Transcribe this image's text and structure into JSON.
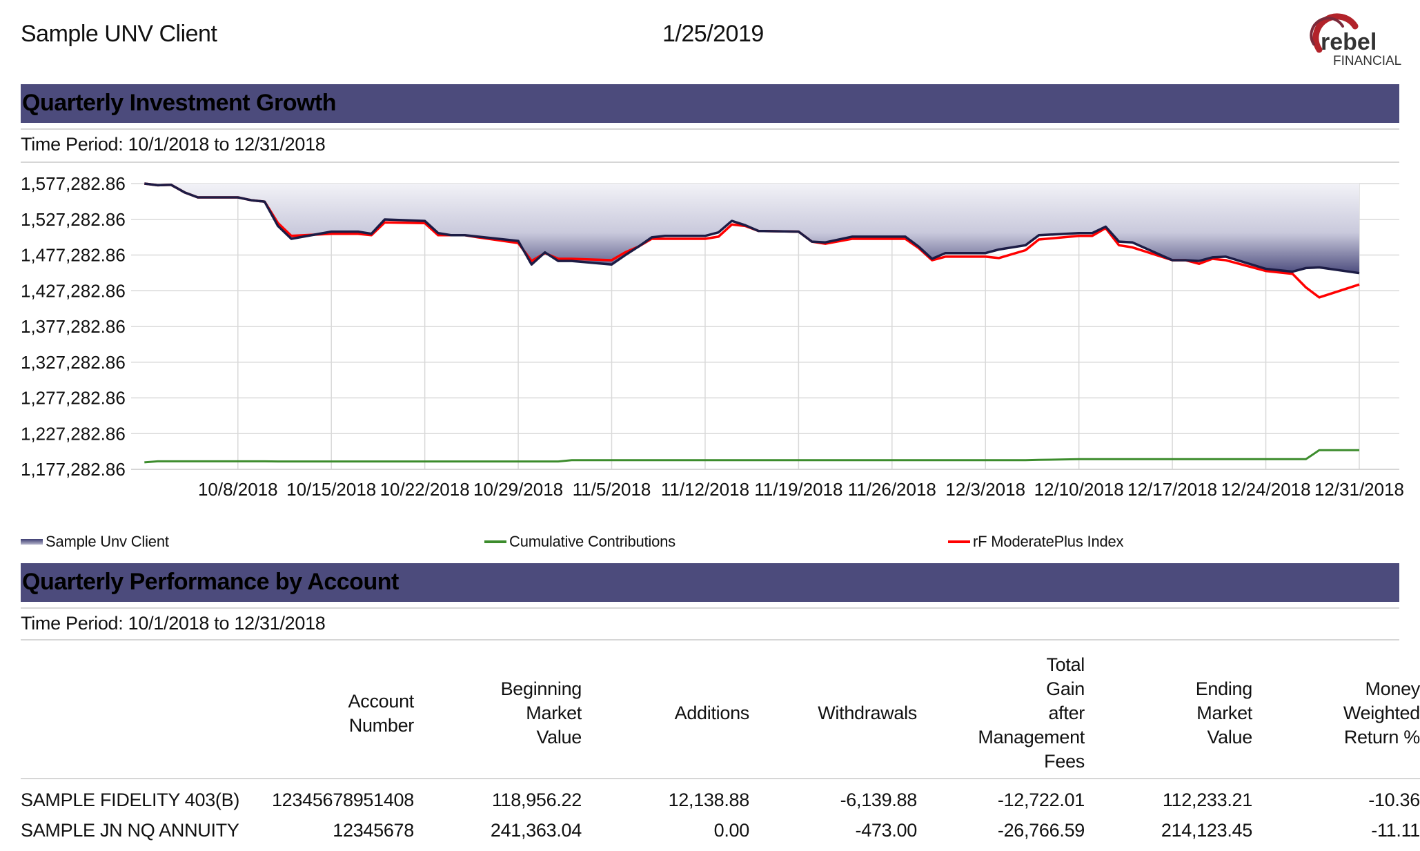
{
  "header": {
    "client_name": "Sample UNV Client",
    "report_date": "1/25/2019",
    "logo_word": "rebel",
    "logo_subword": "FINANCIAL"
  },
  "growth_section": {
    "title": "Quarterly Investment Growth",
    "period": "Time Period: 10/1/2018 to 12/31/2018"
  },
  "colors": {
    "section_bar": "#4c4b7c",
    "client_line": "#1c1c45",
    "client_area_top": "#4d4d7e",
    "contributions_line": "#3c8c2c",
    "index_line": "#ff0000",
    "logo_red": "#b2232a"
  },
  "chart_data": {
    "type": "area",
    "x": [
      "10/1/2018",
      "10/2/2018",
      "10/3/2018",
      "10/4/2018",
      "10/5/2018",
      "10/8/2018",
      "10/9/2018",
      "10/10/2018",
      "10/11/2018",
      "10/12/2018",
      "10/15/2018",
      "10/16/2018",
      "10/17/2018",
      "10/18/2018",
      "10/19/2018",
      "10/22/2018",
      "10/23/2018",
      "10/24/2018",
      "10/25/2018",
      "10/26/2018",
      "10/29/2018",
      "10/30/2018",
      "10/31/2018",
      "11/1/2018",
      "11/2/2018",
      "11/5/2018",
      "11/6/2018",
      "11/7/2018",
      "11/8/2018",
      "11/9/2018",
      "11/12/2018",
      "11/13/2018",
      "11/14/2018",
      "11/15/2018",
      "11/16/2018",
      "11/19/2018",
      "11/20/2018",
      "11/21/2018",
      "11/23/2018",
      "11/26/2018",
      "11/27/2018",
      "11/28/2018",
      "11/29/2018",
      "11/30/2018",
      "12/3/2018",
      "12/4/2018",
      "12/6/2018",
      "12/7/2018",
      "12/10/2018",
      "12/11/2018",
      "12/12/2018",
      "12/13/2018",
      "12/14/2018",
      "12/17/2018",
      "12/18/2018",
      "12/19/2018",
      "12/20/2018",
      "12/21/2018",
      "12/24/2018",
      "12/26/2018",
      "12/27/2018",
      "12/28/2018",
      "12/31/2018"
    ],
    "x_tick_labels": [
      "10/8/2018",
      "10/15/2018",
      "10/22/2018",
      "10/29/2018",
      "11/5/2018",
      "11/12/2018",
      "11/19/2018",
      "11/26/2018",
      "12/3/2018",
      "12/10/2018",
      "12/17/2018",
      "12/24/2018",
      "12/31/2018"
    ],
    "x_range": [
      "9/30/2018",
      "1/3/2019"
    ],
    "y_tick_labels": [
      "1,577,282.86",
      "1,527,282.86",
      "1,477,282.86",
      "1,427,282.86",
      "1,377,282.86",
      "1,327,282.86",
      "1,277,282.86",
      "1,227,282.86",
      "1,177,282.86"
    ],
    "ylim": [
      1177282.86,
      1577282.86
    ],
    "grid": true,
    "legend_position": "bottom",
    "series": [
      {
        "name": "Sample Unv Client",
        "kind": "area",
        "values": [
          1577283,
          1575000,
          1575500,
          1565000,
          1558000,
          1558000,
          1554000,
          1552000,
          1518000,
          1500000,
          1510000,
          1510000,
          1510000,
          1507000,
          1527000,
          1525000,
          1508000,
          1505000,
          1505000,
          1503000,
          1497000,
          1464000,
          1481000,
          1469000,
          1469000,
          1464000,
          1477000,
          1489000,
          1502000,
          1504000,
          1504000,
          1509000,
          1525000,
          1519000,
          1511000,
          1510000,
          1496000,
          1495000,
          1503000,
          1503000,
          1503000,
          1489000,
          1472000,
          1480000,
          1480000,
          1485000,
          1491000,
          1505000,
          1508000,
          1508000,
          1517000,
          1496000,
          1495000,
          1470000,
          1470000,
          1469000,
          1474000,
          1475000,
          1458000,
          1454000,
          1459000,
          1460000,
          1452000
        ]
      },
      {
        "name": "Cumulative Contributions",
        "kind": "line",
        "values": [
          1187000,
          1188500,
          1188500,
          1188500,
          1188500,
          1188500,
          1188500,
          1188500,
          1188300,
          1188300,
          1188300,
          1188300,
          1188300,
          1188300,
          1188300,
          1188300,
          1188300,
          1188300,
          1188300,
          1188300,
          1188300,
          1188300,
          1188300,
          1188300,
          1190000,
          1190000,
          1190000,
          1190000,
          1190000,
          1190000,
          1190000,
          1190000,
          1190000,
          1190000,
          1190000,
          1190000,
          1190000,
          1190000,
          1190000,
          1190000,
          1190000,
          1190000,
          1190000,
          1190000,
          1190000,
          1190000,
          1190000,
          1190500,
          1191500,
          1191500,
          1191500,
          1191500,
          1191500,
          1191500,
          1191500,
          1191500,
          1191500,
          1191500,
          1191500,
          1191500,
          1191500,
          1204000,
          1204000
        ]
      },
      {
        "name": "rF ModeratePlus Index",
        "kind": "line",
        "values": [
          1577283,
          1575000,
          1575500,
          1565000,
          1558000,
          1558000,
          1554000,
          1552000,
          1522000,
          1504000,
          1507000,
          1507000,
          1507000,
          1505000,
          1523000,
          1522000,
          1505000,
          1505000,
          1505000,
          1502000,
          1494000,
          1469000,
          1480000,
          1472000,
          1472000,
          1470000,
          1481000,
          1489000,
          1500000,
          1500000,
          1500000,
          1503000,
          1520000,
          1518000,
          1511000,
          1510000,
          1496000,
          1493000,
          1500000,
          1500000,
          1500000,
          1487000,
          1470000,
          1475000,
          1475000,
          1473000,
          1484000,
          1499000,
          1504000,
          1504000,
          1515000,
          1491000,
          1488000,
          1470000,
          1470000,
          1465000,
          1472000,
          1470000,
          1455000,
          1451000,
          1432000,
          1418000,
          1436000
        ]
      }
    ]
  },
  "legend": [
    {
      "label": "Sample Unv Client",
      "color": "#4d4d7e"
    },
    {
      "label": "Cumulative Contributions",
      "color": "#3c8c2c"
    },
    {
      "label": "rF ModeratePlus Index",
      "color": "#ff0000"
    }
  ],
  "performance_section": {
    "title": "Quarterly Performance by Account",
    "period": "Time Period: 10/1/2018 to 12/31/2018"
  },
  "table": {
    "columns": [
      {
        "label": ""
      },
      {
        "label": "Account\nNumber"
      },
      {
        "label": "Beginning\nMarket\nValue"
      },
      {
        "label": "Additions"
      },
      {
        "label": "Withdrawals"
      },
      {
        "label": "Total\nGain\nafter\nManagement\nFees"
      },
      {
        "label": "Ending\nMarket\nValue"
      },
      {
        "label": "Money\nWeighted\nReturn %"
      }
    ],
    "rows": [
      [
        "SAMPLE FIDELITY 403(B)",
        "12345678951408",
        "118,956.22",
        "12,138.88",
        "-6,139.88",
        "-12,722.01",
        "112,233.21",
        "-10.36"
      ],
      [
        "SAMPLE JN NQ ANNUITY",
        "12345678",
        "241,363.04",
        "0.00",
        "-473.00",
        "-26,766.59",
        "214,123.45",
        "-11.11"
      ]
    ]
  }
}
